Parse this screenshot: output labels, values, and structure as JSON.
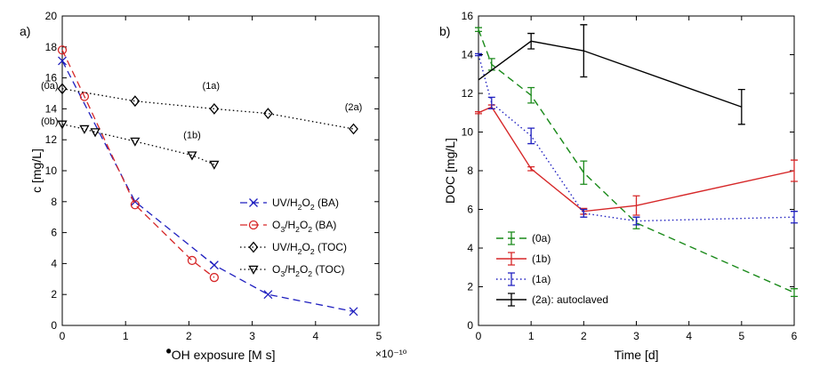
{
  "chart_data": [
    {
      "type": "line",
      "panel_label": "a)",
      "xlabel": "•OH exposure [M s]",
      "xlabel_bullet": "•",
      "xlabel_text": "OH exposure [M s]",
      "x_multiplier": "×10⁻¹⁰",
      "ylabel": "c [mg/L]",
      "xlim": [
        0,
        5
      ],
      "ylim": [
        0,
        20
      ],
      "xticks": [
        0,
        1,
        2,
        3,
        4,
        5
      ],
      "yticks": [
        0,
        2,
        4,
        6,
        8,
        10,
        12,
        14,
        16,
        18,
        20
      ],
      "legend_position": "center-right",
      "series": [
        {
          "name": "UV/H2O2 (BA)",
          "label_parts": [
            [
              "UV/H",
              "n"
            ],
            [
              "2",
              "sub"
            ],
            [
              "O",
              "n"
            ],
            [
              "2",
              "sub"
            ],
            [
              " (BA)",
              "n"
            ]
          ],
          "color": "#1f1fbf",
          "dash": "8,5",
          "marker": "x",
          "x": [
            0,
            1.15,
            2.4,
            3.25,
            4.6
          ],
          "y": [
            17.1,
            8.0,
            3.9,
            2.0,
            0.9
          ]
        },
        {
          "name": "O3/H2O2 (BA)",
          "label_parts": [
            [
              "O",
              "n"
            ],
            [
              "3",
              "sub"
            ],
            [
              "/H",
              "n"
            ],
            [
              "2",
              "sub"
            ],
            [
              "O",
              "n"
            ],
            [
              "2",
              "sub"
            ],
            [
              " (BA)",
              "n"
            ]
          ],
          "color": "#d62728",
          "dash": "8,5",
          "marker": "circle",
          "x": [
            0,
            0.35,
            1.15,
            2.05,
            2.4
          ],
          "y": [
            17.8,
            14.8,
            7.8,
            4.2,
            3.1
          ]
        },
        {
          "name": "UV/H2O2 (TOC)",
          "label_parts": [
            [
              "UV/H",
              "n"
            ],
            [
              "2",
              "sub"
            ],
            [
              "O",
              "n"
            ],
            [
              "2",
              "sub"
            ],
            [
              " (TOC)",
              "n"
            ]
          ],
          "color": "#000000",
          "dash": "1.5,3",
          "marker": "diamond",
          "x": [
            0,
            1.15,
            2.4,
            3.25,
            4.6
          ],
          "y": [
            15.3,
            14.5,
            14.0,
            13.7,
            12.7
          ]
        },
        {
          "name": "O3/H2O2 (TOC)",
          "label_parts": [
            [
              "O",
              "n"
            ],
            [
              "3",
              "sub"
            ],
            [
              "/H",
              "n"
            ],
            [
              "2",
              "sub"
            ],
            [
              "O",
              "n"
            ],
            [
              "2",
              "sub"
            ],
            [
              " (TOC)",
              "n"
            ]
          ],
          "color": "#000000",
          "dash": "1.5,3",
          "marker": "triangle-down",
          "x": [
            0,
            0.35,
            0.52,
            1.15,
            2.05,
            2.4
          ],
          "y": [
            13.0,
            12.7,
            12.5,
            11.9,
            11.0,
            10.4
          ]
        }
      ],
      "annotations": [
        {
          "text": "(0a)",
          "x": -0.2,
          "y": 15.3
        },
        {
          "text": "(0b)",
          "x": -0.2,
          "y": 13.0
        },
        {
          "text": "(1a)",
          "x": 2.35,
          "y": 15.3
        },
        {
          "text": "(1b)",
          "x": 2.05,
          "y": 12.1
        },
        {
          "text": "(2a)",
          "x": 4.6,
          "y": 13.9
        }
      ]
    },
    {
      "type": "line",
      "panel_label": "b)",
      "xlabel": "Time [d]",
      "ylabel": "DOC [mg/L]",
      "xlim": [
        0,
        6
      ],
      "ylim": [
        0,
        16
      ],
      "xticks": [
        0,
        1,
        2,
        3,
        4,
        5,
        6
      ],
      "yticks": [
        0,
        2,
        4,
        6,
        8,
        10,
        12,
        14,
        16
      ],
      "legend_position": "bottom-left",
      "series": [
        {
          "name": "(0a)",
          "color": "#1a8a1a",
          "dash": "8,5",
          "x": [
            0,
            0.25,
            1,
            2,
            3,
            6
          ],
          "y": [
            15.3,
            13.5,
            11.9,
            7.9,
            5.3,
            1.7
          ],
          "err": [
            0.1,
            0.3,
            0.4,
            0.6,
            0.3,
            0.2
          ]
        },
        {
          "name": "(1b)",
          "color": "#d62728",
          "dash": "",
          "x": [
            0,
            0.25,
            1,
            2,
            3,
            6
          ],
          "y": [
            11.0,
            11.3,
            8.1,
            5.9,
            6.2,
            8.0
          ],
          "err": [
            0.05,
            0.1,
            0.1,
            0.15,
            0.5,
            0.55
          ]
        },
        {
          "name": "(1a)",
          "color": "#1f1fbf",
          "dash": "1.5,3",
          "x": [
            0,
            0.25,
            1,
            2,
            3,
            6
          ],
          "y": [
            14.0,
            11.5,
            9.8,
            5.8,
            5.4,
            5.6
          ],
          "err": [
            0.05,
            0.3,
            0.4,
            0.2,
            0.2,
            0.3
          ]
        },
        {
          "name": "(2a): autoclaved",
          "color": "#000000",
          "dash": "",
          "x": [
            0,
            1,
            2,
            5
          ],
          "y": [
            12.7,
            14.7,
            14.2,
            11.3
          ],
          "err": [
            0.0,
            0.4,
            1.35,
            0.9
          ]
        }
      ]
    }
  ]
}
